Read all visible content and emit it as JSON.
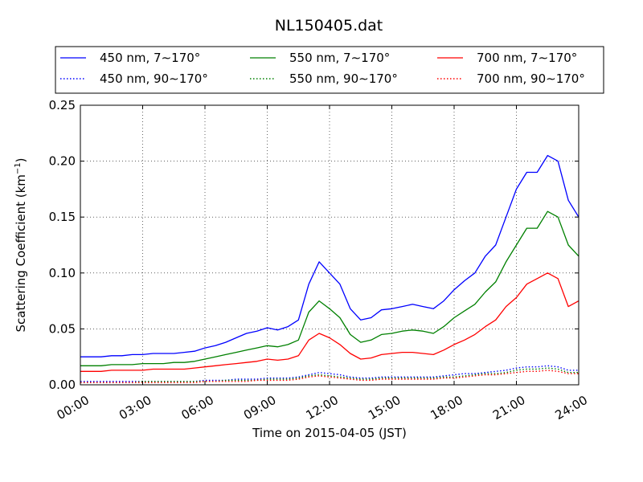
{
  "chart_data": {
    "type": "line",
    "title": "NL150405.dat",
    "xlabel": "Time on 2015-04-05 (JST)",
    "ylabel": "Scattering Coefficient (km",
    "ylabel_sup": "−1",
    "ylabel_close": ")",
    "xlim": [
      0,
      24
    ],
    "ylim": [
      0,
      0.25
    ],
    "grid": true,
    "legend_position": "top",
    "x_ticks": [
      {
        "value": 0,
        "label": "00:00"
      },
      {
        "value": 3,
        "label": "03:00"
      },
      {
        "value": 6,
        "label": "06:00"
      },
      {
        "value": 9,
        "label": "09:00"
      },
      {
        "value": 12,
        "label": "12:00"
      },
      {
        "value": 15,
        "label": "15:00"
      },
      {
        "value": 18,
        "label": "18:00"
      },
      {
        "value": 21,
        "label": "21:00"
      },
      {
        "value": 24,
        "label": "24:00"
      }
    ],
    "y_ticks": [
      {
        "value": 0,
        "label": "0.00"
      },
      {
        "value": 0.05,
        "label": "0.05"
      },
      {
        "value": 0.1,
        "label": "0.10"
      },
      {
        "value": 0.15,
        "label": "0.15"
      },
      {
        "value": 0.2,
        "label": "0.20"
      },
      {
        "value": 0.25,
        "label": "0.25"
      }
    ],
    "x": [
      0,
      0.5,
      1,
      1.5,
      2,
      2.5,
      3,
      3.5,
      4,
      4.5,
      5,
      5.5,
      6,
      6.5,
      7,
      7.5,
      8,
      8.5,
      9,
      9.5,
      10,
      10.5,
      11,
      11.5,
      12,
      12.5,
      13,
      13.5,
      14,
      14.5,
      15,
      15.5,
      16,
      16.5,
      17,
      17.5,
      18,
      18.5,
      19,
      19.5,
      20,
      20.5,
      21,
      21.5,
      22,
      22.5,
      23,
      23.5,
      24
    ],
    "series": [
      {
        "name": "450 nm, 7∼170°",
        "color": "#0000ff",
        "style": "solid",
        "values": [
          0.025,
          0.025,
          0.025,
          0.026,
          0.026,
          0.027,
          0.027,
          0.028,
          0.028,
          0.028,
          0.029,
          0.03,
          0.033,
          0.035,
          0.038,
          0.042,
          0.046,
          0.048,
          0.051,
          0.049,
          0.052,
          0.058,
          0.09,
          0.11,
          0.1,
          0.09,
          0.068,
          0.058,
          0.06,
          0.067,
          0.068,
          0.07,
          0.072,
          0.07,
          0.068,
          0.075,
          0.085,
          0.093,
          0.1,
          0.115,
          0.125,
          0.15,
          0.175,
          0.19,
          0.19,
          0.205,
          0.2,
          0.165,
          0.15
        ]
      },
      {
        "name": "550 nm, 7∼170°",
        "color": "#008000",
        "style": "solid",
        "values": [
          0.017,
          0.017,
          0.017,
          0.018,
          0.018,
          0.018,
          0.019,
          0.019,
          0.019,
          0.02,
          0.02,
          0.021,
          0.023,
          0.025,
          0.027,
          0.029,
          0.031,
          0.033,
          0.035,
          0.034,
          0.036,
          0.04,
          0.065,
          0.075,
          0.068,
          0.06,
          0.045,
          0.038,
          0.04,
          0.045,
          0.046,
          0.048,
          0.049,
          0.048,
          0.046,
          0.052,
          0.06,
          0.066,
          0.072,
          0.083,
          0.092,
          0.11,
          0.125,
          0.14,
          0.14,
          0.155,
          0.15,
          0.125,
          0.115
        ]
      },
      {
        "name": "700 nm, 7∼170°",
        "color": "#ff0000",
        "style": "solid",
        "values": [
          0.012,
          0.012,
          0.012,
          0.013,
          0.013,
          0.013,
          0.013,
          0.014,
          0.014,
          0.014,
          0.014,
          0.015,
          0.016,
          0.017,
          0.018,
          0.019,
          0.02,
          0.021,
          0.023,
          0.022,
          0.023,
          0.026,
          0.04,
          0.046,
          0.042,
          0.036,
          0.028,
          0.023,
          0.024,
          0.027,
          0.028,
          0.029,
          0.029,
          0.028,
          0.027,
          0.031,
          0.036,
          0.04,
          0.045,
          0.052,
          0.058,
          0.07,
          0.078,
          0.09,
          0.095,
          0.1,
          0.095,
          0.07,
          0.075
        ]
      },
      {
        "name": "450 nm, 90∼170°",
        "color": "#0000ff",
        "style": "dotted",
        "values": [
          0.003,
          0.003,
          0.003,
          0.003,
          0.003,
          0.003,
          0.003,
          0.003,
          0.003,
          0.003,
          0.003,
          0.003,
          0.004,
          0.004,
          0.004,
          0.005,
          0.005,
          0.005,
          0.006,
          0.006,
          0.006,
          0.007,
          0.009,
          0.011,
          0.01,
          0.009,
          0.007,
          0.006,
          0.006,
          0.007,
          0.007,
          0.007,
          0.007,
          0.007,
          0.007,
          0.008,
          0.009,
          0.01,
          0.01,
          0.011,
          0.012,
          0.013,
          0.015,
          0.016,
          0.016,
          0.017,
          0.016,
          0.013,
          0.013
        ]
      },
      {
        "name": "550 nm, 90∼170°",
        "color": "#008000",
        "style": "dotted",
        "values": [
          0.002,
          0.002,
          0.002,
          0.002,
          0.002,
          0.002,
          0.003,
          0.003,
          0.003,
          0.003,
          0.003,
          0.003,
          0.003,
          0.003,
          0.004,
          0.004,
          0.004,
          0.004,
          0.005,
          0.005,
          0.005,
          0.006,
          0.008,
          0.009,
          0.008,
          0.007,
          0.006,
          0.005,
          0.005,
          0.006,
          0.006,
          0.006,
          0.006,
          0.006,
          0.006,
          0.007,
          0.007,
          0.008,
          0.009,
          0.01,
          0.01,
          0.011,
          0.013,
          0.014,
          0.014,
          0.015,
          0.014,
          0.011,
          0.011
        ]
      },
      {
        "name": "700 nm, 90∼170°",
        "color": "#ff0000",
        "style": "dotted",
        "values": [
          0.002,
          0.002,
          0.002,
          0.002,
          0.002,
          0.002,
          0.002,
          0.002,
          0.002,
          0.002,
          0.002,
          0.002,
          0.003,
          0.003,
          0.003,
          0.003,
          0.003,
          0.004,
          0.004,
          0.004,
          0.004,
          0.005,
          0.007,
          0.008,
          0.007,
          0.006,
          0.005,
          0.004,
          0.004,
          0.005,
          0.005,
          0.005,
          0.005,
          0.005,
          0.005,
          0.006,
          0.006,
          0.007,
          0.008,
          0.009,
          0.009,
          0.01,
          0.011,
          0.012,
          0.012,
          0.013,
          0.012,
          0.01,
          0.01
        ]
      }
    ],
    "legend_order": [
      0,
      3,
      1,
      4,
      2,
      5
    ]
  }
}
